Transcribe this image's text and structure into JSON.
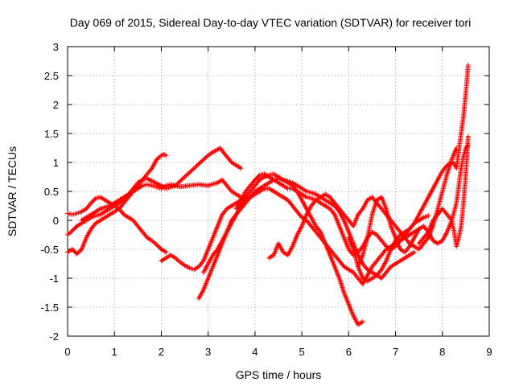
{
  "chart_data": {
    "type": "scatter",
    "title": "Day 069 of 2015, Sidereal Day-to-day VTEC variation (SDTVAR) for receiver tori",
    "xlabel": "GPS time / hours",
    "ylabel": "SDTVAR / TECUs",
    "xlim": [
      0,
      9
    ],
    "ylim": [
      -2,
      3
    ],
    "xticks": [
      0,
      1,
      2,
      3,
      4,
      5,
      6,
      7,
      8,
      9
    ],
    "yticks": [
      -2,
      -1.5,
      -1,
      -0.5,
      0,
      0.5,
      1,
      1.5,
      2,
      2.5,
      3
    ],
    "xtick_labels": [
      "0",
      "1",
      "2",
      "3",
      "4",
      "5",
      "6",
      "7",
      "8",
      "9"
    ],
    "ytick_labels": [
      "-2",
      "-1.5",
      "-1",
      "-0.5",
      "0",
      "0.5",
      "1",
      "1.5",
      "2",
      "2.5",
      "3"
    ],
    "grid": true,
    "marker": "+",
    "color": "#ff0000",
    "series": [
      {
        "x": [
          0.0,
          0.1,
          0.2,
          0.3,
          0.4,
          0.5,
          0.6,
          0.7,
          0.8,
          0.9,
          1.0,
          1.1,
          1.2,
          1.3,
          1.4,
          1.5,
          1.6,
          1.7,
          1.8,
          1.9,
          2.0,
          2.05,
          2.1
        ],
        "y": [
          0.12,
          0.1,
          0.12,
          0.15,
          0.2,
          0.3,
          0.38,
          0.4,
          0.35,
          0.3,
          0.25,
          0.2,
          0.1,
          0.05,
          0.0,
          -0.1,
          -0.2,
          -0.3,
          -0.35,
          -0.42,
          -0.5,
          -0.52,
          -0.55
        ]
      },
      {
        "x": [
          0.0,
          0.1,
          0.2,
          0.3,
          0.4,
          0.5,
          0.6,
          0.7,
          0.8,
          0.9,
          1.0,
          1.1,
          1.2,
          1.3,
          1.4,
          1.5,
          1.6,
          1.7,
          1.8,
          1.9,
          2.0,
          2.1,
          2.2,
          2.4,
          2.6,
          2.8,
          3.0,
          3.2,
          3.3,
          3.4,
          3.5,
          3.6,
          3.7
        ],
        "y": [
          -0.25,
          -0.18,
          -0.1,
          -0.05,
          0.0,
          0.05,
          0.08,
          0.1,
          0.15,
          0.2,
          0.25,
          0.3,
          0.38,
          0.45,
          0.5,
          0.55,
          0.6,
          0.62,
          0.6,
          0.58,
          0.55,
          0.6,
          0.62,
          0.58,
          0.6,
          0.62,
          0.6,
          0.65,
          0.7,
          0.6,
          0.5,
          0.45,
          0.4
        ]
      },
      {
        "x": [
          0.0,
          0.1,
          0.2,
          0.3,
          0.4,
          0.5,
          0.6,
          0.7,
          0.8,
          0.9,
          1.0,
          1.1,
          1.2,
          1.3,
          1.4,
          1.5,
          1.6,
          1.7,
          1.8,
          1.9,
          2.0,
          2.05,
          2.1
        ],
        "y": [
          -0.55,
          -0.5,
          -0.58,
          -0.5,
          -0.3,
          -0.15,
          -0.05,
          0.0,
          0.05,
          0.1,
          0.15,
          0.2,
          0.3,
          0.4,
          0.5,
          0.6,
          0.7,
          0.8,
          0.9,
          1.05,
          1.12,
          1.14,
          1.12
        ]
      },
      {
        "x": [
          0.3,
          0.5,
          0.7,
          0.9,
          1.0,
          1.1,
          1.2,
          1.3,
          1.4,
          1.5,
          1.6,
          1.7,
          1.8,
          2.0,
          2.1,
          2.3,
          2.5,
          2.7,
          2.9,
          3.0,
          3.1,
          3.2,
          3.25,
          3.3,
          3.4,
          3.5,
          3.6,
          3.7
        ],
        "y": [
          0.0,
          0.1,
          0.2,
          0.25,
          0.3,
          0.35,
          0.4,
          0.45,
          0.55,
          0.65,
          0.7,
          0.72,
          0.68,
          0.6,
          0.55,
          0.6,
          0.75,
          0.9,
          1.05,
          1.12,
          1.18,
          1.22,
          1.25,
          1.2,
          1.1,
          1.0,
          0.95,
          0.9
        ]
      },
      {
        "x": [
          2.0,
          2.1,
          2.2,
          2.3,
          2.4,
          2.5,
          2.6,
          2.7,
          2.8,
          2.9,
          3.0,
          3.1,
          3.2,
          3.3,
          3.4,
          3.5,
          3.6,
          3.7,
          3.8,
          3.9,
          4.0,
          4.1,
          4.2,
          4.3,
          4.4,
          4.5,
          4.6,
          4.7,
          4.8,
          4.9,
          5.0,
          5.1,
          5.2,
          5.3,
          5.4,
          5.5,
          5.6,
          5.7,
          5.8,
          5.9,
          6.0,
          6.1,
          6.2,
          6.3,
          6.4,
          6.5,
          6.6,
          6.7,
          6.8,
          6.9,
          7.0,
          7.1,
          7.2,
          7.3,
          7.4,
          7.5
        ],
        "y": [
          -0.7,
          -0.65,
          -0.6,
          -0.65,
          -0.72,
          -0.78,
          -0.82,
          -0.85,
          -0.8,
          -0.7,
          -0.5,
          -0.3,
          -0.1,
          0.1,
          0.2,
          0.25,
          0.3,
          0.35,
          0.38,
          0.4,
          0.45,
          0.5,
          0.55,
          0.55,
          0.5,
          0.45,
          0.4,
          0.35,
          0.25,
          0.15,
          0.05,
          0.0,
          -0.1,
          -0.2,
          -0.3,
          -0.4,
          -0.5,
          -0.6,
          -0.7,
          -0.8,
          -0.85,
          -0.9,
          -1.0,
          -1.1,
          -0.95,
          -0.8,
          -0.7,
          -0.6,
          -0.5,
          -0.45,
          -0.4,
          -0.35,
          -0.3,
          -0.25,
          -0.2,
          -0.15
        ]
      },
      {
        "x": [
          2.8,
          2.9,
          3.0,
          3.1,
          3.2,
          3.3,
          3.4,
          3.5,
          3.6,
          3.7,
          3.8,
          3.9,
          4.0,
          4.1,
          4.2,
          4.3,
          4.4,
          4.5,
          4.6,
          4.7,
          4.8,
          4.9,
          5.0,
          5.1,
          5.2,
          5.3,
          5.4,
          5.5,
          5.6,
          5.7,
          5.8,
          5.9,
          6.0,
          6.1,
          6.2,
          6.3
        ],
        "y": [
          -1.35,
          -1.2,
          -1.0,
          -0.8,
          -0.6,
          -0.4,
          -0.2,
          0.0,
          0.1,
          0.2,
          0.3,
          0.4,
          0.5,
          0.55,
          0.6,
          0.65,
          0.7,
          0.72,
          0.7,
          0.65,
          0.6,
          0.5,
          0.35,
          0.2,
          0.05,
          -0.1,
          -0.2,
          -0.4,
          -0.6,
          -0.8,
          -1.0,
          -1.25,
          -1.45,
          -1.65,
          -1.8,
          -1.75
        ]
      },
      {
        "x": [
          2.9,
          3.0,
          3.1,
          3.2,
          3.3,
          3.4,
          3.5,
          3.6,
          3.7,
          3.8,
          3.9,
          4.0,
          4.1,
          4.2,
          4.3,
          4.4,
          4.5,
          4.6,
          4.7,
          4.8,
          4.9,
          5.0,
          5.1,
          5.2,
          5.3,
          5.4,
          5.5,
          5.6,
          5.7,
          5.8,
          5.9,
          6.0,
          6.1,
          6.2,
          6.3,
          6.4,
          6.5,
          6.6,
          6.7,
          6.8,
          6.9,
          7.0,
          7.1,
          7.2,
          7.3,
          7.4
        ],
        "y": [
          -0.9,
          -0.75,
          -0.6,
          -0.5,
          -0.35,
          -0.2,
          -0.05,
          0.1,
          0.25,
          0.4,
          0.5,
          0.6,
          0.7,
          0.75,
          0.78,
          0.8,
          0.75,
          0.7,
          0.68,
          0.65,
          0.6,
          0.55,
          0.5,
          0.48,
          0.45,
          0.4,
          0.35,
          0.3,
          0.25,
          0.15,
          0.0,
          -0.2,
          -0.4,
          -0.6,
          -0.75,
          -0.85,
          -0.9,
          -0.95,
          -1.0,
          -0.9,
          -0.8,
          -0.75,
          -0.7,
          -0.65,
          -0.6,
          -0.55
        ]
      },
      {
        "x": [
          3.6,
          3.7,
          3.8,
          3.9,
          4.0,
          4.1,
          4.2,
          4.3,
          4.4,
          4.5,
          4.6,
          4.7,
          4.8,
          4.9,
          5.0,
          5.1,
          5.2,
          5.3,
          5.4,
          5.5,
          5.6,
          5.7,
          5.8,
          5.9,
          6.0,
          6.1,
          6.2,
          6.3,
          6.4,
          6.5,
          6.6,
          6.7,
          6.8,
          6.9,
          7.0,
          7.1,
          7.2,
          7.3,
          7.4,
          7.5,
          7.6,
          7.7
        ],
        "y": [
          0.2,
          0.35,
          0.5,
          0.6,
          0.7,
          0.78,
          0.8,
          0.75,
          0.7,
          0.65,
          0.6,
          0.55,
          0.55,
          0.5,
          0.45,
          0.4,
          0.38,
          0.35,
          0.3,
          0.25,
          0.2,
          0.1,
          -0.1,
          -0.3,
          -0.5,
          -0.6,
          -0.55,
          -0.45,
          -0.3,
          -0.2,
          -0.25,
          -0.35,
          -0.45,
          -0.5,
          -0.45,
          -0.35,
          -0.25,
          -0.15,
          -0.05,
          0.0,
          0.05,
          0.08
        ]
      },
      {
        "x": [
          4.3,
          4.4,
          4.5,
          4.6,
          4.7,
          4.8,
          4.9,
          5.0,
          5.1,
          5.2,
          5.3,
          5.4,
          5.5,
          5.6,
          5.7,
          5.8,
          5.9,
          6.0,
          6.1,
          6.2,
          6.3,
          6.4,
          6.5,
          6.6,
          6.7,
          6.8,
          6.9,
          7.0,
          7.1,
          7.2,
          7.3,
          7.4,
          7.5,
          7.6,
          7.7,
          7.8,
          7.9,
          8.0,
          8.1,
          8.2,
          8.3
        ],
        "y": [
          -0.65,
          -0.6,
          -0.4,
          -0.55,
          -0.6,
          -0.45,
          -0.25,
          -0.1,
          0.1,
          0.25,
          0.35,
          0.4,
          0.45,
          0.4,
          0.3,
          0.2,
          0.1,
          0.0,
          -0.1,
          0.1,
          0.2,
          0.35,
          0.4,
          0.3,
          0.2,
          0.1,
          0.0,
          -0.1,
          -0.2,
          -0.3,
          -0.4,
          -0.45,
          -0.5,
          -0.4,
          -0.3,
          -0.1,
          0.2,
          0.5,
          0.8,
          1.05,
          1.25
        ]
      },
      {
        "x": [
          6.0,
          6.1,
          6.2,
          6.3,
          6.4,
          6.5,
          6.6,
          6.7,
          6.8,
          6.9,
          7.0,
          7.1,
          7.2,
          7.3,
          7.4,
          7.5,
          7.6,
          7.7,
          7.8,
          7.9,
          8.0,
          8.1,
          8.2,
          8.25,
          8.3,
          8.35,
          8.4,
          8.45,
          8.5,
          8.55
        ],
        "y": [
          -0.3,
          -0.5,
          -0.8,
          -1.0,
          -1.05,
          -1.0,
          -0.95,
          -0.85,
          -0.7,
          -0.5,
          -0.35,
          -0.25,
          -0.2,
          -0.15,
          -0.05,
          0.1,
          0.25,
          0.4,
          0.55,
          0.7,
          0.85,
          0.95,
          1.0,
          0.98,
          0.9,
          1.2,
          1.5,
          1.8,
          2.2,
          2.68
        ]
      },
      {
        "x": [
          7.5,
          7.6,
          7.7,
          7.8,
          7.9,
          8.0,
          8.1,
          8.2,
          8.25,
          8.3,
          8.35,
          8.4,
          8.45,
          8.5,
          8.55
        ],
        "y": [
          -0.4,
          -0.3,
          -0.2,
          0.0,
          0.1,
          0.2,
          0.1,
          0.0,
          -0.2,
          -0.45,
          -0.3,
          -0.1,
          0.3,
          0.8,
          1.45
        ]
      },
      {
        "x": [
          6.2,
          6.3,
          6.4,
          6.5,
          6.6,
          6.7,
          6.8,
          6.9,
          7.0,
          7.1,
          7.2,
          7.3,
          7.4,
          7.5,
          7.6,
          7.7,
          7.8,
          7.9,
          8.0,
          8.1,
          8.2,
          8.3,
          8.35,
          8.4,
          8.45,
          8.5,
          8.55
        ],
        "y": [
          -0.8,
          -0.6,
          -0.3,
          0.1,
          0.35,
          0.4,
          0.2,
          -0.1,
          -0.3,
          -0.5,
          -0.55,
          -0.45,
          -0.3,
          -0.15,
          -0.1,
          -0.2,
          -0.35,
          -0.4,
          -0.35,
          -0.2,
          0.0,
          0.3,
          0.6,
          0.9,
          1.1,
          1.25,
          1.3
        ]
      }
    ]
  }
}
